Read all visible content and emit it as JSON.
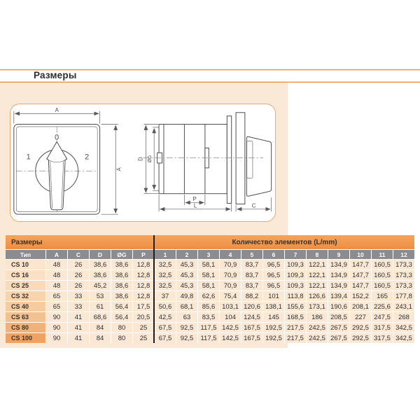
{
  "page": {
    "title": "Размеры"
  },
  "drawing": {
    "front": {
      "dim_width": "A",
      "dim_height": "A",
      "pos_left": "1",
      "pos_center": "0",
      "pos_right": "2"
    },
    "side": {
      "dim_depth": "D",
      "dim_shaft": "ØG",
      "dim_p": "P",
      "dim_l": "L",
      "dim_c": "C"
    }
  },
  "table": {
    "group_left": "Размеры",
    "group_right": "Количество элементов (L/mm)",
    "columns": [
      "Тип",
      "A",
      "C",
      "D",
      "ØG",
      "P",
      "1",
      "2",
      "3",
      "4",
      "5",
      "6",
      "7",
      "8",
      "9",
      "10",
      "11",
      "12"
    ],
    "rows": [
      {
        "type": "CS 10",
        "values": [
          "48",
          "26",
          "38,6",
          "38,6",
          "12,8",
          "32,5",
          "45,3",
          "58,1",
          "70,9",
          "83,7",
          "96,5",
          "109,3",
          "122,1",
          "134,9",
          "147,7",
          "160,5",
          "173,3"
        ]
      },
      {
        "type": "CS 16",
        "values": [
          "48",
          "26",
          "38,6",
          "38,6",
          "12,8",
          "32,5",
          "45,3",
          "58,1",
          "70,9",
          "83,7",
          "96,5",
          "109,3",
          "122,1",
          "134,9",
          "147,7",
          "160,5",
          "173,3"
        ]
      },
      {
        "type": "CS 25",
        "values": [
          "48",
          "26",
          "45,2",
          "38,6",
          "12,8",
          "32,5",
          "45,3",
          "58,1",
          "70,9",
          "83,7",
          "96,5",
          "109,3",
          "122,1",
          "134,9",
          "147,7",
          "160,5",
          "173,3"
        ]
      },
      {
        "type": "CS 32",
        "values": [
          "65",
          "33",
          "53",
          "38,6",
          "12,8",
          "37",
          "49,8",
          "62,6",
          "75,4",
          "88,2",
          "101",
          "113,8",
          "126,6",
          "139,4",
          "152,2",
          "165",
          "177,8"
        ]
      },
      {
        "type": "CS 40",
        "values": [
          "65",
          "33",
          "61",
          "56,4",
          "17,5",
          "50,6",
          "68,1",
          "85,6",
          "103,1",
          "120,6",
          "138,1",
          "155,6",
          "173,1",
          "190,6",
          "208,1",
          "225,6",
          "243,1"
        ]
      },
      {
        "type": "CS 63",
        "values": [
          "90",
          "41",
          "68,6",
          "56,4",
          "20,5",
          "42,5",
          "63",
          "83,5",
          "104",
          "124,5",
          "145",
          "168,5",
          "186",
          "208,5",
          "227",
          "247,5",
          "268"
        ]
      },
      {
        "type": "CS 80",
        "values": [
          "90",
          "41",
          "84",
          "80",
          "25",
          "67,5",
          "92,5",
          "117,5",
          "142,5",
          "167,5",
          "192,5",
          "217,5",
          "242,5",
          "267,5",
          "292,5",
          "317,5",
          "342,5"
        ]
      },
      {
        "type": "CS 100",
        "values": [
          "90",
          "41",
          "84",
          "80",
          "25",
          "67,5",
          "92,5",
          "117,5",
          "142,5",
          "167,5",
          "192,5",
          "217,5",
          "242,5",
          "267,5",
          "292,5",
          "317,5",
          "342,5"
        ]
      }
    ]
  }
}
